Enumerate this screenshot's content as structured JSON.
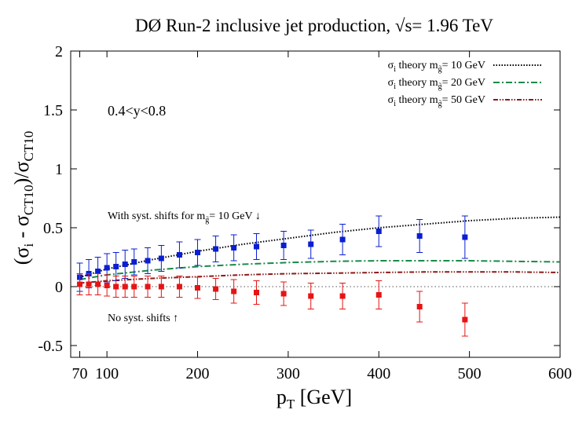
{
  "chart_data": {
    "type": "line",
    "title": "DØ Run-2 inclusive jet production, √s= 1.96 TeV",
    "xlabel": "p",
    "xlabel_sub": "T",
    "xlabel_unit": " [GeV]",
    "ylabel_parts": [
      "(σ",
      "i",
      " - σ",
      "CT10",
      ")/σ",
      "CT10"
    ],
    "xlim": [
      60,
      600
    ],
    "ylim": [
      -0.6,
      2.0
    ],
    "xticks": [
      70,
      100,
      200,
      300,
      400,
      500,
      600
    ],
    "yticks": [
      -0.5,
      0,
      0.5,
      1,
      1.5,
      2
    ],
    "ytick_labels": [
      "-0.5",
      "0",
      "0.5",
      "1",
      "1.5",
      "2"
    ],
    "region_label": "0.4<y<0.8",
    "legend_placement": "top-right",
    "series": [
      {
        "name": "σi theory m~g= 10 GeV",
        "legend_main": "σ",
        "legend_sub": "i",
        "legend_mid": " theory m",
        "legend_msub": "g̃",
        "legend_end": "= 10 GeV",
        "color": "#000000",
        "dash": "1.5,2",
        "x": [
          70,
          100,
          150,
          200,
          250,
          300,
          350,
          400,
          450,
          500,
          550,
          600
        ],
        "y": [
          0.08,
          0.15,
          0.23,
          0.3,
          0.36,
          0.41,
          0.46,
          0.5,
          0.53,
          0.56,
          0.58,
          0.59
        ]
      },
      {
        "name": "σi theory m~g= 20 GeV",
        "legend_main": "σ",
        "legend_sub": "i",
        "legend_mid": " theory m",
        "legend_msub": "g̃",
        "legend_end": "= 20 GeV",
        "color": "#1a8a4a",
        "dash": "8,3,2,3",
        "x": [
          70,
          100,
          150,
          200,
          250,
          300,
          350,
          400,
          450,
          500,
          550,
          600
        ],
        "y": [
          0.06,
          0.1,
          0.14,
          0.17,
          0.19,
          0.205,
          0.215,
          0.22,
          0.22,
          0.22,
          0.215,
          0.21
        ]
      },
      {
        "name": "σi theory m~g= 50 GeV",
        "legend_main": "σ",
        "legend_sub": "i",
        "legend_mid": " theory m",
        "legend_msub": "g̃",
        "legend_end": "= 50 GeV",
        "color": "#8b1a1a",
        "dash": "6,2,1.5,2,1.5,2",
        "x": [
          70,
          100,
          150,
          200,
          250,
          300,
          350,
          400,
          450,
          500,
          550,
          600
        ],
        "y": [
          0.03,
          0.05,
          0.07,
          0.085,
          0.1,
          0.11,
          0.115,
          0.12,
          0.125,
          0.125,
          0.125,
          0.12
        ]
      }
    ],
    "points": [
      {
        "name": "With syst. shifts",
        "color": "#0a1ed2",
        "x": [
          70,
          80,
          90,
          100,
          110,
          120,
          130,
          145,
          160,
          180,
          200,
          220,
          240,
          265,
          295,
          325,
          360,
          400,
          445,
          495
        ],
        "y": [
          0.08,
          0.11,
          0.13,
          0.16,
          0.17,
          0.19,
          0.21,
          0.22,
          0.24,
          0.27,
          0.29,
          0.32,
          0.33,
          0.34,
          0.35,
          0.36,
          0.4,
          0.47,
          0.43,
          0.42
        ],
        "err": [
          0.12,
          0.12,
          0.12,
          0.12,
          0.12,
          0.12,
          0.11,
          0.11,
          0.11,
          0.11,
          0.11,
          0.11,
          0.11,
          0.11,
          0.12,
          0.12,
          0.13,
          0.13,
          0.14,
          0.18
        ]
      },
      {
        "name": "No syst. shifts",
        "color": "#e61414",
        "x": [
          70,
          80,
          90,
          100,
          110,
          120,
          130,
          145,
          160,
          180,
          200,
          220,
          240,
          265,
          295,
          325,
          360,
          400,
          445,
          495
        ],
        "y": [
          0.02,
          0.02,
          0.02,
          0.01,
          0.0,
          0.0,
          0.0,
          0.0,
          0.0,
          0.0,
          -0.01,
          -0.02,
          -0.04,
          -0.05,
          -0.06,
          -0.08,
          -0.08,
          -0.07,
          -0.17,
          -0.28
        ],
        "err": [
          0.09,
          0.09,
          0.09,
          0.09,
          0.09,
          0.09,
          0.09,
          0.09,
          0.09,
          0.09,
          0.09,
          0.09,
          0.1,
          0.1,
          0.1,
          0.11,
          0.11,
          0.12,
          0.13,
          0.14
        ]
      }
    ],
    "annotations": {
      "syst_text": "With syst. shifts for m",
      "syst_sub": "g̃",
      "syst_end": "= 10 GeV ↓",
      "nosyst_text": "No syst. shifts ↑"
    }
  }
}
